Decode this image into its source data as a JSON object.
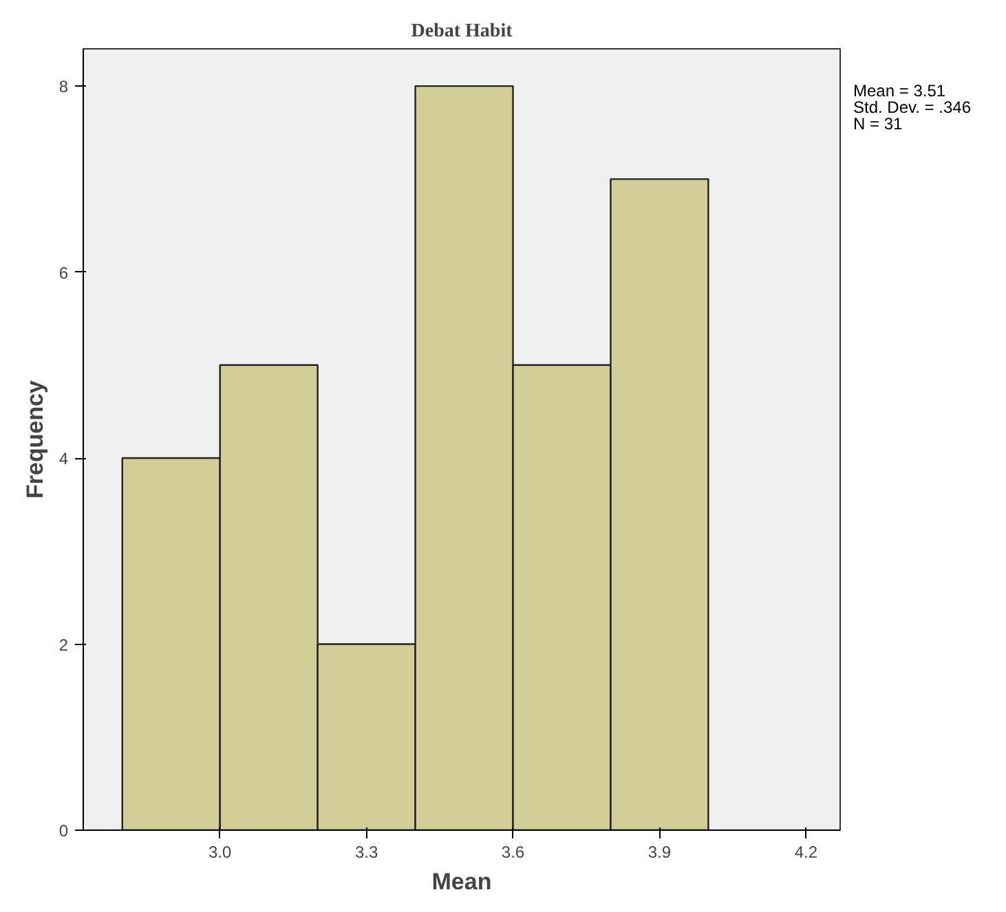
{
  "chart_data": {
    "type": "histogram",
    "title": "Debat Habit",
    "xlabel": "Mean",
    "ylabel": "Frequency",
    "bins": [
      2.8,
      3.0,
      3.2,
      3.4,
      3.6,
      3.8,
      4.0
    ],
    "values": [
      4,
      5,
      2,
      8,
      5,
      7
    ],
    "color": "#d3ce98",
    "xlim": [
      2.72,
      4.27
    ],
    "xticks": [
      {
        "value": 3.0,
        "label": "3.0"
      },
      3.3,
      3.6,
      3.9,
      4.2
    ],
    "ylim": [
      0,
      8.4
    ],
    "yticks": [
      0,
      2,
      4,
      6,
      8
    ],
    "grid": false,
    "annotations": [
      "Mean = 3.51",
      "Std. Dev. = .346",
      "N = 31"
    ]
  }
}
